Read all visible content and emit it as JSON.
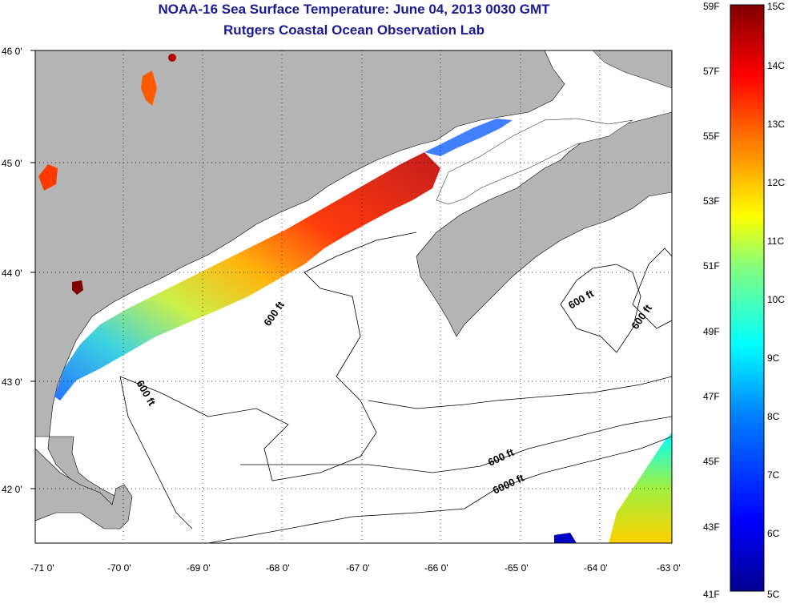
{
  "title": {
    "line1": "NOAA-16 Sea Surface Temperature:  June 04, 2013 0030 GMT",
    "line2": "Rutgers Coastal Ocean Observation Lab"
  },
  "axes": {
    "lat_labels": [
      "46 0'",
      "45 0'",
      "44 0'",
      "43 0'",
      "42 0'"
    ],
    "lon_labels": [
      "-71 0'",
      "-70 0'",
      "-69 0'",
      "-68 0'",
      "-67 0'",
      "-66 0'",
      "-65 0'",
      "-64 0'",
      "-63 0'"
    ]
  },
  "contours": {
    "labels": [
      "600 ft",
      "600 ft",
      "600 ft",
      "600 ft",
      "600 ft",
      "6000 ft"
    ]
  },
  "colorbar": {
    "fahrenheit_labels": [
      "59F",
      "57F",
      "55F",
      "53F",
      "51F",
      "49F",
      "47F",
      "45F",
      "43F",
      "41F"
    ],
    "celsius_labels": [
      "15C",
      "14C",
      "13C",
      "12C",
      "11C",
      "10C",
      "9C",
      "8C",
      "7C",
      "6C",
      "5C"
    ],
    "colors": [
      "#00008f",
      "#0000ff",
      "#0080ff",
      "#00ffff",
      "#80ff80",
      "#ffff00",
      "#ff8000",
      "#ff0000",
      "#800000"
    ]
  },
  "land_color": "#b4b4b4"
}
